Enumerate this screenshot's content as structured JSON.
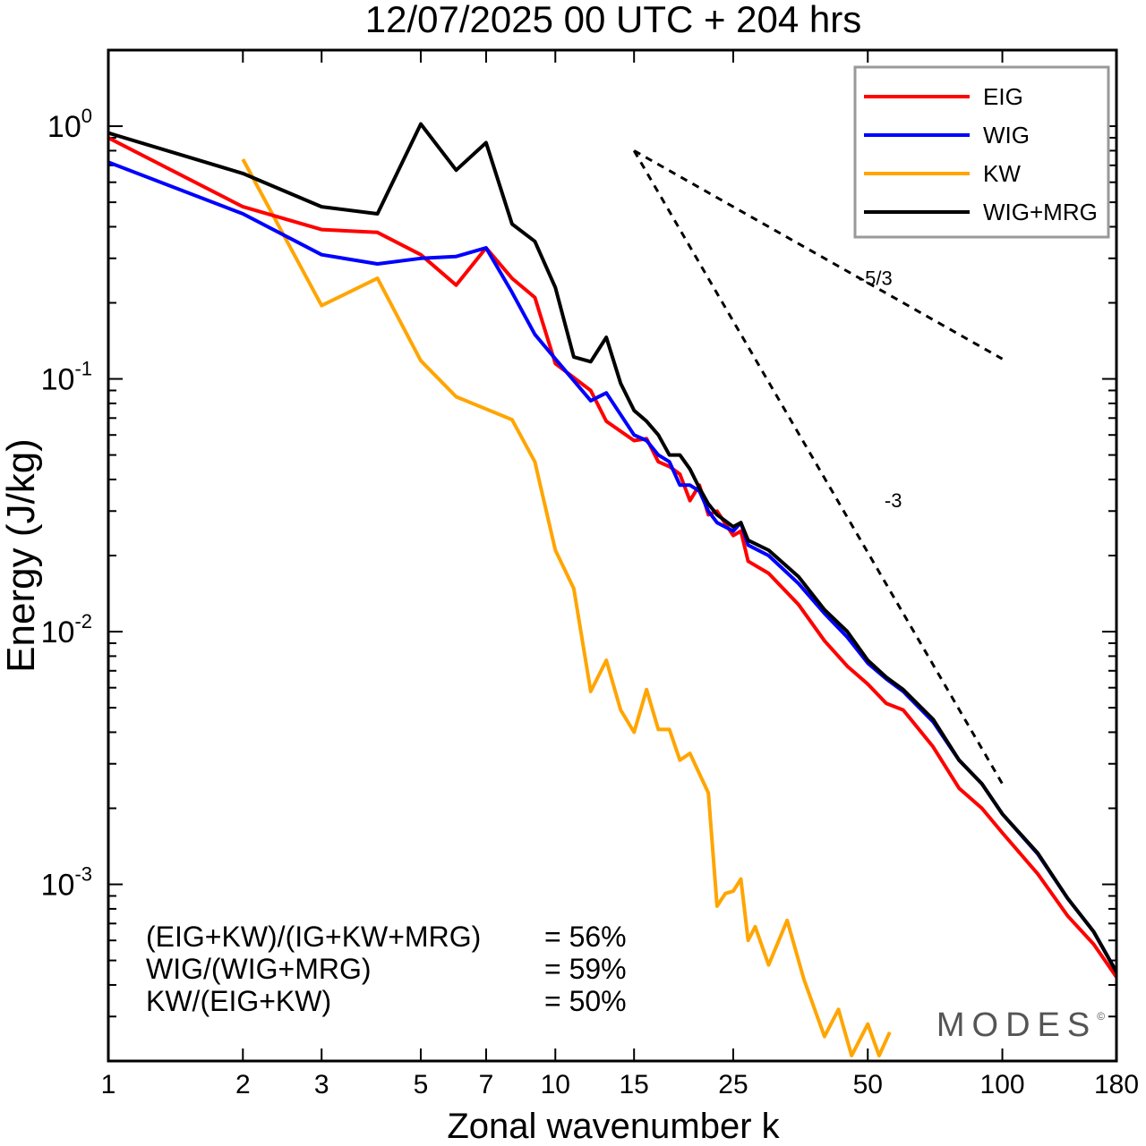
{
  "chart_data": {
    "type": "line",
    "title": "12/07/2025  00 UTC  + 204 hrs",
    "xlabel": "Zonal wavenumber k",
    "ylabel": "Energy (J/kg)",
    "xscale": "log",
    "yscale": "log",
    "xlim": [
      1,
      180
    ],
    "ylim": [
      0.0002,
      2.0
    ],
    "x_ticks": [
      1,
      2,
      3,
      5,
      7,
      10,
      15,
      25,
      50,
      100,
      180
    ],
    "x_tick_labels": [
      "1",
      "2",
      "3",
      "5",
      "7",
      "10",
      "15",
      "25",
      "50",
      "100",
      "180"
    ],
    "y_ticks": [
      {
        "value": 1.0,
        "base": "10",
        "exp": "0"
      },
      {
        "value": 0.1,
        "base": "10",
        "exp": "-1"
      },
      {
        "value": 0.01,
        "base": "10",
        "exp": "-2"
      },
      {
        "value": 0.001,
        "base": "10",
        "exp": "-3"
      }
    ],
    "legend_position": "top-right",
    "series": [
      {
        "name": "EIG",
        "color": "#ff0000",
        "x": [
          1,
          2,
          3,
          4,
          5,
          6,
          7,
          8,
          9,
          10,
          12,
          13,
          15,
          16,
          17,
          18,
          19,
          20,
          21,
          22,
          23,
          25,
          26,
          27,
          30,
          35,
          40,
          45,
          50,
          55,
          60,
          70,
          80,
          90,
          100,
          120,
          140,
          160,
          180
        ],
        "values": [
          0.9,
          0.48,
          0.39,
          0.38,
          0.31,
          0.235,
          0.33,
          0.25,
          0.21,
          0.115,
          0.09,
          0.068,
          0.057,
          0.058,
          0.047,
          0.045,
          0.042,
          0.033,
          0.038,
          0.029,
          0.03,
          0.024,
          0.025,
          0.019,
          0.017,
          0.0128,
          0.0092,
          0.0073,
          0.0062,
          0.0052,
          0.0049,
          0.0035,
          0.0024,
          0.002,
          0.0016,
          0.0011,
          0.00075,
          0.00058,
          0.00043
        ]
      },
      {
        "name": "WIG",
        "color": "#0000ff",
        "x": [
          1,
          2,
          3,
          4,
          5,
          6,
          7,
          8,
          9,
          10,
          12,
          13,
          15,
          16,
          17,
          18,
          19,
          20,
          21,
          22,
          23,
          25,
          26,
          27,
          30,
          35,
          40,
          45,
          50,
          55,
          60,
          70,
          80,
          90,
          100,
          120,
          140,
          160,
          180
        ],
        "values": [
          0.72,
          0.45,
          0.31,
          0.285,
          0.3,
          0.305,
          0.33,
          0.22,
          0.15,
          0.12,
          0.082,
          0.088,
          0.06,
          0.057,
          0.05,
          0.047,
          0.038,
          0.038,
          0.036,
          0.03,
          0.027,
          0.025,
          0.027,
          0.022,
          0.02,
          0.0155,
          0.0118,
          0.0095,
          0.0075,
          0.0065,
          0.0058,
          0.0044,
          0.0031,
          0.0025,
          0.0019,
          0.00132,
          0.00088,
          0.00065,
          0.00045
        ]
      },
      {
        "name": "KW",
        "color": "#ffa500",
        "x": [
          2,
          3,
          4,
          5,
          6,
          7,
          8,
          9,
          10,
          11,
          12,
          13,
          14,
          15,
          16,
          17,
          18,
          19,
          20,
          22,
          23,
          24,
          25,
          26,
          27,
          28,
          30,
          33,
          36,
          40,
          43,
          46,
          50,
          53,
          56
        ],
        "values": [
          0.74,
          0.195,
          0.25,
          0.118,
          0.085,
          0.076,
          0.069,
          0.047,
          0.021,
          0.0148,
          0.0058,
          0.0077,
          0.0049,
          0.004,
          0.0059,
          0.0041,
          0.0041,
          0.0031,
          0.0033,
          0.0023,
          0.00082,
          0.00092,
          0.00094,
          0.00105,
          0.0006,
          0.00068,
          0.00048,
          0.00072,
          0.00042,
          0.00025,
          0.00032,
          0.00021,
          0.00028,
          0.00021,
          0.00026
        ]
      },
      {
        "name": "WIG+MRG",
        "color": "#000000",
        "x": [
          1,
          2,
          3,
          4,
          5,
          6,
          7,
          8,
          9,
          10,
          11,
          12,
          13,
          14,
          15,
          16,
          17,
          18,
          19,
          20,
          21,
          22,
          23,
          25,
          26,
          27,
          30,
          35,
          40,
          45,
          50,
          55,
          60,
          70,
          80,
          90,
          100,
          120,
          140,
          160,
          180
        ],
        "values": [
          0.94,
          0.65,
          0.48,
          0.45,
          1.02,
          0.67,
          0.86,
          0.41,
          0.35,
          0.23,
          0.122,
          0.117,
          0.146,
          0.096,
          0.075,
          0.068,
          0.06,
          0.05,
          0.05,
          0.044,
          0.037,
          0.032,
          0.029,
          0.026,
          0.027,
          0.023,
          0.021,
          0.0165,
          0.0122,
          0.01,
          0.0077,
          0.0066,
          0.0059,
          0.0045,
          0.0031,
          0.0025,
          0.0019,
          0.00133,
          0.00088,
          0.00065,
          0.00045
        ]
      }
    ],
    "reference_lines": [
      {
        "label": "-5/3",
        "x": [
          15,
          100
        ],
        "values": [
          0.8,
          0.12
        ],
        "label_at": [
          52,
          0.235
        ]
      },
      {
        "label": "-3",
        "x": [
          15,
          100
        ],
        "values": [
          0.8,
          0.0025
        ],
        "label_at": [
          57,
          0.031
        ]
      }
    ],
    "annotations": [
      {
        "label": "(EIG+KW)/(IG+KW+MRG)",
        "value": "= 56%"
      },
      {
        "label": "WIG/(WIG+MRG)",
        "value": "= 59%"
      },
      {
        "label": "KW/(EIG+KW)",
        "value": "= 50%"
      }
    ],
    "watermark": "MODES",
    "watermark_symbol": "©"
  }
}
